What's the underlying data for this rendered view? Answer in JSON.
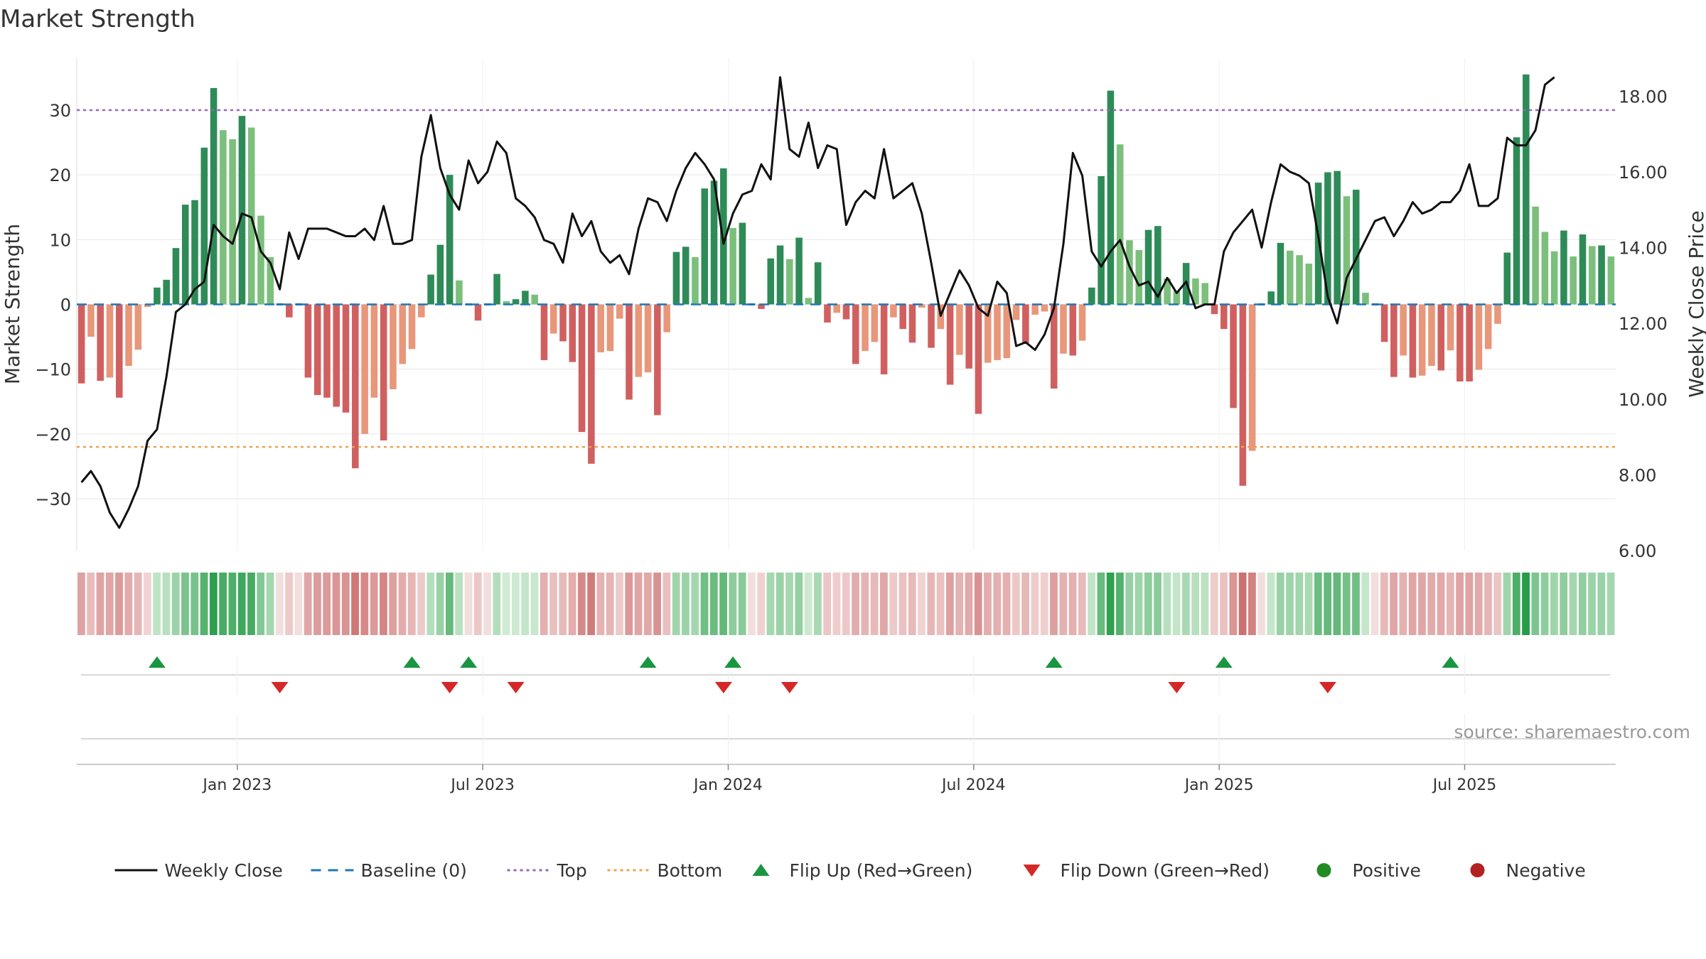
{
  "chart_data": {
    "type": "bar",
    "title": "Market Strength",
    "ylabel": "Market Strength",
    "y2label": "Weekly Close Price",
    "ylim": [
      -38,
      38
    ],
    "y2lim": [
      6.0,
      19.0
    ],
    "grid": true,
    "legend_position": "bottom-center",
    "source_note": "source: sharemaestro.com",
    "x_ticks": [
      {
        "week": 17,
        "label": "Jan 2023"
      },
      {
        "week": 43,
        "label": "Jul 2023"
      },
      {
        "week": 69,
        "label": "Jan 2024"
      },
      {
        "week": 95,
        "label": "Jul 2024"
      },
      {
        "week": 121,
        "label": "Jan 2025"
      },
      {
        "week": 147,
        "label": "Jul 2025"
      }
    ],
    "y_ticks": [
      30,
      20,
      10,
      0,
      -10,
      -20,
      -30
    ],
    "y_tick_labels": [
      "30",
      "20",
      "10",
      "0",
      "−10",
      "−20",
      "−30"
    ],
    "y2_ticks": [
      18,
      16,
      14,
      12,
      10,
      8,
      6
    ],
    "y2_tick_labels": [
      "18.00",
      "16.00",
      "14.00",
      "12.00",
      "10.00",
      "8.00",
      "6.00"
    ],
    "top_line": 30,
    "bottom_line": -22,
    "baseline": 0,
    "strength": [
      -12.2,
      -5.0,
      -11.8,
      -11.3,
      -14.4,
      -9.5,
      -7.0,
      -0.4,
      2.6,
      3.8,
      8.7,
      15.4,
      16.1,
      24.2,
      33.4,
      26.9,
      25.5,
      29.1,
      27.3,
      13.7,
      7.3,
      0.0,
      -2.0,
      0.0,
      -11.3,
      -14.0,
      -14.4,
      -15.8,
      -16.7,
      -25.3,
      -20.0,
      -14.4,
      -21.0,
      -13.1,
      -9.2,
      -6.9,
      -2.0,
      4.6,
      9.2,
      20.0,
      3.7,
      0.0,
      -2.5,
      0.0,
      4.7,
      0.5,
      0.8,
      2.1,
      1.5,
      -8.6,
      -4.5,
      -5.7,
      -8.9,
      -19.7,
      -24.6,
      -7.4,
      -7.2,
      -2.2,
      -14.7,
      -11.2,
      -10.5,
      -17.1,
      -4.3,
      8.1,
      8.9,
      7.3,
      17.9,
      19.1,
      21.0,
      11.8,
      12.6,
      0.0,
      -0.7,
      7.1,
      9.1,
      7.0,
      10.3,
      1.0,
      6.5,
      -2.8,
      -1.3,
      -2.3,
      -9.2,
      -7.2,
      -5.8,
      -10.8,
      -2.0,
      -3.8,
      -5.9,
      -0.5,
      -6.7,
      -3.8,
      -12.4,
      -7.8,
      -9.9,
      -16.9,
      -9.0,
      -8.6,
      -8.3,
      -2.4,
      -6.0,
      -1.6,
      -1.1,
      -13.0,
      -7.6,
      -7.9,
      -5.6,
      2.6,
      19.8,
      33.0,
      24.7,
      9.9,
      8.4,
      11.5,
      12.1,
      4.0,
      2.1,
      6.4,
      4.0,
      3.3,
      -1.5,
      -3.8,
      -16.0,
      -28.0,
      -22.6,
      0.0,
      2.0,
      9.5,
      8.3,
      7.6,
      6.3,
      18.8,
      20.4,
      20.6,
      16.7,
      17.7,
      1.8,
      0.0,
      -5.8,
      -11.2,
      -7.9,
      -11.3,
      -11.0,
      -9.5,
      -10.2,
      -7.1,
      -11.9,
      -11.9,
      -10.1,
      -6.9,
      -3.0,
      8.0,
      25.8,
      35.5,
      15.1,
      11.2,
      8.2,
      11.4,
      7.4,
      10.8,
      9.0,
      9.1,
      7.4
    ],
    "close": [
      7.8,
      8.1,
      7.7,
      7.0,
      6.6,
      7.1,
      7.7,
      8.9,
      9.2,
      10.6,
      12.3,
      12.5,
      12.9,
      13.1,
      14.6,
      14.3,
      14.1,
      14.9,
      14.8,
      13.9,
      13.6,
      12.9,
      14.4,
      13.7,
      14.5,
      14.5,
      14.5,
      14.4,
      14.3,
      14.3,
      14.5,
      14.2,
      15.1,
      14.1,
      14.1,
      14.2,
      16.4,
      17.5,
      16.1,
      15.4,
      15.0,
      16.3,
      15.7,
      16.0,
      16.8,
      16.5,
      15.3,
      15.1,
      14.8,
      14.2,
      14.1,
      13.6,
      14.9,
      14.3,
      14.7,
      13.9,
      13.6,
      13.8,
      13.3,
      14.5,
      15.3,
      15.2,
      14.7,
      15.5,
      16.1,
      16.5,
      16.2,
      15.8,
      14.1,
      14.9,
      15.4,
      15.5,
      16.2,
      15.8,
      18.5,
      16.6,
      16.4,
      17.3,
      16.1,
      16.7,
      16.6,
      14.6,
      15.2,
      15.5,
      15.3,
      16.6,
      15.3,
      15.5,
      15.7,
      14.9,
      13.6,
      12.2,
      12.8,
      13.4,
      13.0,
      12.4,
      12.2,
      13.1,
      12.8,
      11.4,
      11.5,
      11.3,
      11.7,
      12.4,
      14.1,
      16.5,
      15.9,
      13.9,
      13.5,
      13.9,
      14.2,
      13.5,
      13.0,
      13.1,
      12.7,
      13.2,
      12.8,
      13.1,
      12.4,
      12.5,
      12.5,
      13.9,
      14.4,
      14.7,
      15.0,
      14.0,
      15.2,
      16.2,
      16.0,
      15.9,
      15.7,
      14.3,
      12.7,
      12.0,
      13.2,
      13.7,
      14.2,
      14.7,
      14.8,
      14.3,
      14.7,
      15.2,
      14.9,
      15.0,
      15.2,
      15.2,
      15.5,
      16.2,
      15.1,
      15.1,
      15.3,
      16.9,
      16.7,
      16.7,
      17.1,
      18.3,
      18.5
    ],
    "flips_up": [
      8,
      35,
      41,
      60,
      69,
      103,
      121,
      145
    ],
    "flips_down": [
      21,
      39,
      46,
      68,
      75,
      116,
      132
    ],
    "legend": [
      {
        "label": "Weekly Close",
        "kind": "solid-line",
        "color": "#111111"
      },
      {
        "label": "Baseline (0)",
        "kind": "dashed-line",
        "color": "#1f77b4"
      },
      {
        "label": "Top",
        "kind": "dotted-line",
        "color": "#9467bd"
      },
      {
        "label": "Bottom",
        "kind": "dotted-line",
        "color": "#f0a050"
      },
      {
        "label": "Flip Up (Red→Green)",
        "kind": "triangle-up",
        "color": "#1a9641"
      },
      {
        "label": "Flip Down (Green→Red)",
        "kind": "triangle-down",
        "color": "#d62728"
      },
      {
        "label": "Positive",
        "kind": "circle",
        "color": "#228b22"
      },
      {
        "label": "Negative",
        "kind": "circle",
        "color": "#b22222"
      }
    ],
    "colors": {
      "pos_strong": "#2e8b57",
      "pos_light": "#7cbf7c",
      "neg_strong": "#d06060",
      "neg_light": "#e8977a",
      "top": "#9467bd",
      "bottom": "#f0a050",
      "baseline": "#1f77b4",
      "price": "#111111",
      "flip_up": "#1a9641",
      "flip_down": "#d62728"
    }
  }
}
